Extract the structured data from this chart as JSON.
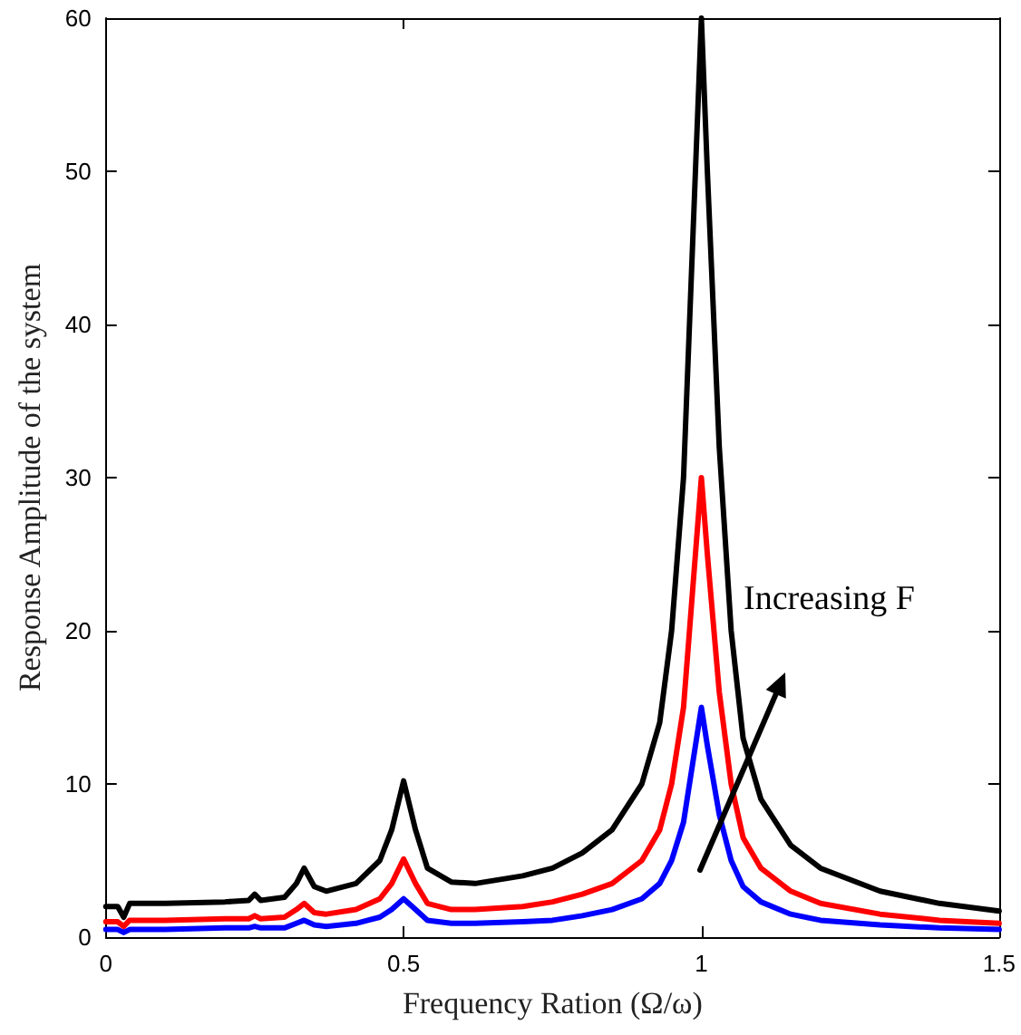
{
  "chart_data": {
    "type": "line",
    "xlabel": "Frequency Ration (Ω/ω)",
    "ylabel": "Response Amplitude of the system",
    "xlim": [
      0,
      1.5
    ],
    "ylim": [
      0,
      60
    ],
    "xticks": [
      0,
      0.5,
      1,
      1.5
    ],
    "yticks": [
      0,
      10,
      20,
      30,
      40,
      50,
      60
    ],
    "grid": false,
    "marker": "none",
    "line_style": "solid",
    "series": [
      {
        "color": "#0000ff",
        "x": [
          0,
          0.02,
          0.03,
          0.04,
          0.1,
          0.2,
          0.24,
          0.25,
          0.26,
          0.3,
          0.32,
          0.333,
          0.35,
          0.37,
          0.42,
          0.46,
          0.48,
          0.5,
          0.52,
          0.54,
          0.58,
          0.62,
          0.7,
          0.75,
          0.8,
          0.85,
          0.9,
          0.93,
          0.95,
          0.97,
          0.99,
          1.0,
          1.01,
          1.03,
          1.05,
          1.07,
          1.1,
          1.15,
          1.2,
          1.3,
          1.4,
          1.5
        ],
        "values": [
          0.5,
          0.5,
          0.3,
          0.5,
          0.5,
          0.6,
          0.6,
          0.7,
          0.6,
          0.6,
          0.9,
          1.1,
          0.8,
          0.7,
          0.9,
          1.3,
          1.8,
          2.5,
          1.8,
          1.1,
          0.9,
          0.9,
          1,
          1.1,
          1.4,
          1.8,
          2.5,
          3.5,
          5,
          7.5,
          12.5,
          15,
          12.5,
          8,
          5,
          3.3,
          2.3,
          1.5,
          1.1,
          0.8,
          0.6,
          0.5
        ]
      },
      {
        "color": "#ff0000",
        "x": [
          0,
          0.02,
          0.03,
          0.04,
          0.1,
          0.2,
          0.24,
          0.25,
          0.26,
          0.3,
          0.32,
          0.333,
          0.35,
          0.37,
          0.42,
          0.46,
          0.48,
          0.5,
          0.52,
          0.54,
          0.58,
          0.62,
          0.7,
          0.75,
          0.8,
          0.85,
          0.9,
          0.93,
          0.95,
          0.97,
          0.99,
          1.0,
          1.01,
          1.03,
          1.05,
          1.07,
          1.1,
          1.15,
          1.2,
          1.3,
          1.4,
          1.5
        ],
        "values": [
          1,
          1,
          0.7,
          1.1,
          1.1,
          1.2,
          1.2,
          1.4,
          1.2,
          1.3,
          1.8,
          2.2,
          1.6,
          1.5,
          1.8,
          2.5,
          3.5,
          5.1,
          3.5,
          2.2,
          1.8,
          1.8,
          2,
          2.3,
          2.8,
          3.5,
          5,
          7,
          10,
          15,
          25,
          30,
          25,
          16,
          10,
          6.5,
          4.5,
          3,
          2.2,
          1.5,
          1.1,
          0.9
        ]
      },
      {
        "color": "#000000",
        "x": [
          0,
          0.02,
          0.03,
          0.04,
          0.1,
          0.2,
          0.24,
          0.25,
          0.26,
          0.3,
          0.32,
          0.333,
          0.35,
          0.37,
          0.42,
          0.46,
          0.48,
          0.5,
          0.52,
          0.54,
          0.58,
          0.62,
          0.7,
          0.75,
          0.8,
          0.85,
          0.9,
          0.93,
          0.95,
          0.97,
          0.99,
          1.0,
          1.01,
          1.03,
          1.05,
          1.07,
          1.1,
          1.15,
          1.2,
          1.3,
          1.4,
          1.5
        ],
        "values": [
          2,
          2,
          1.3,
          2.2,
          2.2,
          2.3,
          2.4,
          2.8,
          2.4,
          2.6,
          3.5,
          4.5,
          3.3,
          3,
          3.5,
          5,
          7,
          10.2,
          7,
          4.5,
          3.6,
          3.5,
          4,
          4.5,
          5.5,
          7,
          10,
          14,
          20,
          30,
          50,
          60,
          50,
          32,
          20,
          13,
          9,
          6,
          4.5,
          3,
          2.2,
          1.7
        ]
      }
    ],
    "annotations": [
      "Increasing F"
    ]
  }
}
